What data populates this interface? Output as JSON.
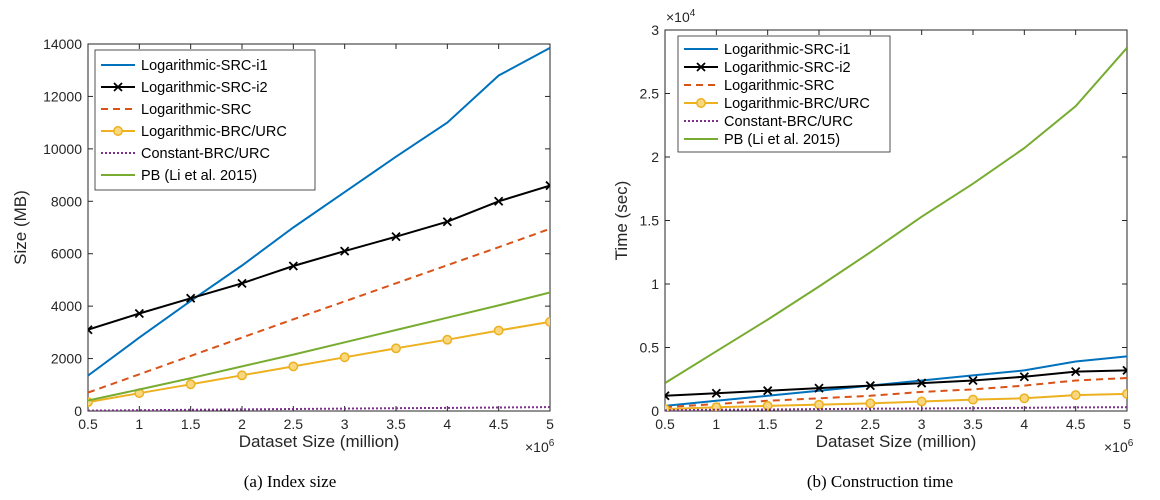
{
  "chart_data": [
    {
      "type": "line",
      "caption": "(a)  Index size",
      "xlabel": "Dataset Size (million)",
      "ylabel": "Size (MB)",
      "x_exponent": "×10",
      "x_exponent_power": "6",
      "y_exponent": "",
      "y_exponent_power": "",
      "x": [
        0.5,
        1,
        1.5,
        2,
        2.5,
        3,
        3.5,
        4,
        4.5,
        5
      ],
      "xlim": [
        0.5,
        5
      ],
      "ylim": [
        0,
        14000
      ],
      "xticks": [
        "0.5",
        "1",
        "1.5",
        "2",
        "2.5",
        "3",
        "3.5",
        "4",
        "4.5",
        "5"
      ],
      "yticks": [
        "0",
        "2000",
        "4000",
        "6000",
        "8000",
        "10000",
        "12000",
        "14000"
      ],
      "ytick_values": [
        0,
        2000,
        4000,
        6000,
        8000,
        10000,
        12000,
        14000
      ],
      "legend_position": "top-left",
      "series": [
        {
          "name": "Logarithmic-SRC-i1",
          "color": "#0072BD",
          "style": "solid",
          "marker": "none",
          "values": [
            1350,
            2800,
            4200,
            5550,
            7000,
            8350,
            9700,
            11000,
            12800,
            13850
          ]
        },
        {
          "name": "Logarithmic-SRC-i2",
          "color": "#000000",
          "style": "solid",
          "marker": "x",
          "values": [
            3100,
            3720,
            4300,
            4870,
            5530,
            6100,
            6650,
            7220,
            8000,
            8600
          ]
        },
        {
          "name": "Logarithmic-SRC",
          "color": "#D95319",
          "style": "dashed",
          "marker": "none",
          "values": [
            700,
            1400,
            2100,
            2800,
            3500,
            4180,
            4870,
            5560,
            6250,
            6950
          ]
        },
        {
          "name": "Logarithmic-BRC/URC",
          "color": "#EDB120",
          "style": "solid",
          "marker": "o",
          "values": [
            340,
            680,
            1020,
            1360,
            1700,
            2050,
            2390,
            2720,
            3070,
            3400
          ]
        },
        {
          "name": "Constant-BRC/URC",
          "color": "#7E2F8E",
          "style": "dotted",
          "marker": "none",
          "values": [
            15,
            30,
            45,
            60,
            75,
            90,
            105,
            120,
            135,
            150
          ]
        },
        {
          "name": "PB (Li et al. 2015)",
          "color": "#77AC30",
          "style": "solid",
          "marker": "none",
          "values": [
            400,
            820,
            1250,
            1700,
            2150,
            2620,
            3090,
            3560,
            4030,
            4520
          ]
        }
      ]
    },
    {
      "type": "line",
      "caption": "(b)  Construction time",
      "xlabel": "Dataset Size (million)",
      "ylabel": "Time (sec)",
      "x_exponent": "×10",
      "x_exponent_power": "6",
      "y_exponent": "×10",
      "y_exponent_power": "4",
      "x": [
        0.5,
        1,
        1.5,
        2,
        2.5,
        3,
        3.5,
        4,
        4.5,
        5
      ],
      "xlim": [
        0.5,
        5
      ],
      "ylim": [
        0,
        3
      ],
      "xticks": [
        "0.5",
        "1",
        "1.5",
        "2",
        "2.5",
        "3",
        "3.5",
        "4",
        "4.5",
        "5"
      ],
      "yticks": [
        "0",
        "0.5",
        "1",
        "1.5",
        "2",
        "2.5",
        "3"
      ],
      "ytick_values": [
        0,
        0.5,
        1,
        1.5,
        2,
        2.5,
        3
      ],
      "legend_position": "top-left",
      "series": [
        {
          "name": "Logarithmic-SRC-i1",
          "color": "#0072BD",
          "style": "solid",
          "marker": "none",
          "values": [
            0.04,
            0.08,
            0.12,
            0.16,
            0.2,
            0.24,
            0.28,
            0.32,
            0.39,
            0.43
          ]
        },
        {
          "name": "Logarithmic-SRC-i2",
          "color": "#000000",
          "style": "solid",
          "marker": "x",
          "values": [
            0.12,
            0.14,
            0.16,
            0.18,
            0.2,
            0.22,
            0.24,
            0.27,
            0.31,
            0.32
          ]
        },
        {
          "name": "Logarithmic-SRC",
          "color": "#D95319",
          "style": "dashed",
          "marker": "none",
          "values": [
            0.03,
            0.055,
            0.08,
            0.1,
            0.12,
            0.15,
            0.17,
            0.2,
            0.24,
            0.26
          ]
        },
        {
          "name": "Logarithmic-BRC/URC",
          "color": "#EDB120",
          "style": "solid",
          "marker": "o",
          "values": [
            0.015,
            0.03,
            0.04,
            0.05,
            0.06,
            0.075,
            0.09,
            0.1,
            0.125,
            0.135
          ]
        },
        {
          "name": "Constant-BRC/URC",
          "color": "#7E2F8E",
          "style": "dotted",
          "marker": "none",
          "values": [
            0.005,
            0.01,
            0.012,
            0.015,
            0.018,
            0.02,
            0.022,
            0.025,
            0.028,
            0.03
          ]
        },
        {
          "name": "PB (Li et al. 2015)",
          "color": "#77AC30",
          "style": "solid",
          "marker": "none",
          "values": [
            0.22,
            0.47,
            0.72,
            0.98,
            1.25,
            1.53,
            1.79,
            2.07,
            2.4,
            2.86
          ]
        }
      ]
    }
  ]
}
